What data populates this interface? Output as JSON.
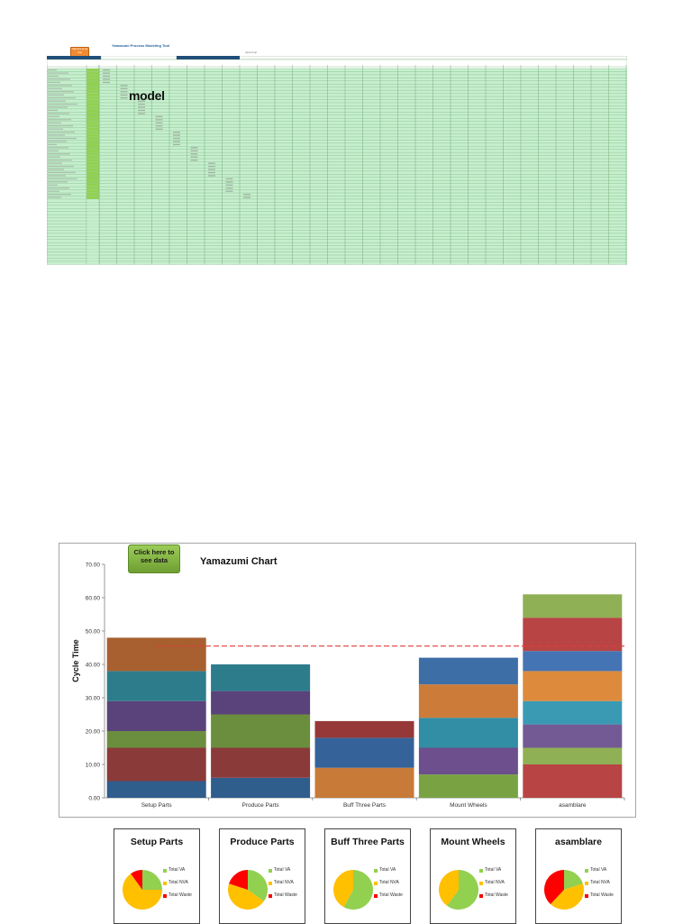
{
  "sheet": {
    "button_label": "Click here to see chart",
    "title": "Yamazumi Process Modeling Tool",
    "note": "Jump to top",
    "model_label": "model"
  },
  "chart_button": {
    "label": "Click here to see data"
  },
  "colors": {
    "va": "#92d050",
    "nva": "#ffc000",
    "waste": "#ff0000",
    "takt": "#e03c3c",
    "sheet_fill": "#c6efce",
    "sheet_grid": "#5a9a5a",
    "sheet_header": "#1f4e79"
  },
  "chart_data": {
    "type": "bar",
    "stacked": true,
    "title": "Yamazumi Chart",
    "xlabel": "",
    "ylabel": "Cycle Time",
    "ylim": [
      0,
      70
    ],
    "yticks": [
      "0.00",
      "10.00",
      "20.00",
      "30.00",
      "40.00",
      "50.00",
      "60.00",
      "70.00"
    ],
    "grid": false,
    "takt_time": 45.5,
    "categories": [
      "Setup Parts",
      "Produce Parts",
      "Buff Three Parts",
      "Mount Wheels",
      "asamblare"
    ],
    "stacks": [
      {
        "segments": [
          5,
          10,
          5,
          9,
          9,
          10
        ],
        "colors": [
          "#2f5d8c",
          "#8b3a3a",
          "#6b8e3e",
          "#5a437a",
          "#2d7c8c",
          "#a86030"
        ]
      },
      {
        "segments": [
          6,
          9,
          10,
          7,
          8
        ],
        "colors": [
          "#2f5d8c",
          "#8b3a3a",
          "#6b8e3e",
          "#5a437a",
          "#2d7c8c"
        ]
      },
      {
        "segments": [
          9,
          9,
          5
        ],
        "colors": [
          "#c87a38",
          "#356399",
          "#963838"
        ]
      },
      {
        "segments": [
          7,
          8,
          9,
          10,
          8
        ],
        "colors": [
          "#79a343",
          "#6c4f8c",
          "#318ea4",
          "#cd7b38",
          "#3d6ea6"
        ]
      },
      {
        "segments": [
          10,
          5,
          7,
          7,
          9,
          6,
          10,
          7
        ],
        "colors": [
          "#b84444",
          "#8fb055",
          "#735a94",
          "#3a9ab4",
          "#dd8a3c",
          "#4474b4",
          "#b84444",
          "#8fb055"
        ]
      }
    ]
  },
  "pies": [
    {
      "title": "Setup Parts",
      "va": 25,
      "nva": 65,
      "waste": 10
    },
    {
      "title": "Produce Parts",
      "va": 35,
      "nva": 45,
      "waste": 20
    },
    {
      "title": "Buff Three Parts",
      "va": 58,
      "nva": 42,
      "waste": 0
    },
    {
      "title": "Mount Wheels",
      "va": 60,
      "nva": 40,
      "waste": 0
    },
    {
      "title": "asamblare",
      "va": 20,
      "nva": 42,
      "waste": 38
    }
  ],
  "legend": {
    "va": "Total VA",
    "nva": "Total NVA",
    "waste": "Total Waste"
  }
}
